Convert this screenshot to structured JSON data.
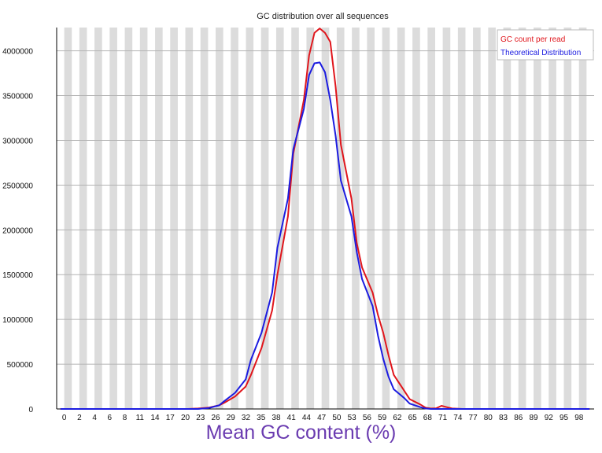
{
  "chart_data": {
    "type": "line",
    "title": "GC distribution over all sequences",
    "xlabel": "Mean GC content (%)",
    "ylabel": "",
    "x_tick_labels": [
      "0",
      "2",
      "4",
      "6",
      "8",
      "11",
      "14",
      "17",
      "20",
      "23",
      "26",
      "29",
      "32",
      "35",
      "38",
      "41",
      "44",
      "47",
      "50",
      "53",
      "56",
      "59",
      "62",
      "65",
      "68",
      "71",
      "74",
      "77",
      "80",
      "83",
      "86",
      "89",
      "92",
      "95",
      "98"
    ],
    "y_ticks": [
      0,
      500000,
      1000000,
      1500000,
      2000000,
      2500000,
      3000000,
      3500000,
      4000000
    ],
    "xlim": [
      0,
      100
    ],
    "ylim": [
      0,
      4260000
    ],
    "grid": true,
    "legend_position": "top-right",
    "series": [
      {
        "name": "GC count per read",
        "color": "#e0161c",
        "points": [
          [
            0,
            0
          ],
          [
            24,
            0
          ],
          [
            26,
            5000
          ],
          [
            28,
            15000
          ],
          [
            30,
            40000
          ],
          [
            31,
            70000
          ],
          [
            33,
            140000
          ],
          [
            35,
            250000
          ],
          [
            36,
            380000
          ],
          [
            38,
            680000
          ],
          [
            40,
            1100000
          ],
          [
            41,
            1500000
          ],
          [
            43,
            2150000
          ],
          [
            44,
            2850000
          ],
          [
            46,
            3450000
          ],
          [
            47,
            3950000
          ],
          [
            48,
            4200000
          ],
          [
            49,
            4250000
          ],
          [
            50,
            4200000
          ],
          [
            51,
            4100000
          ],
          [
            52,
            3600000
          ],
          [
            53,
            2950000
          ],
          [
            55,
            2350000
          ],
          [
            56,
            1850000
          ],
          [
            57,
            1580000
          ],
          [
            59,
            1300000
          ],
          [
            60,
            1050000
          ],
          [
            61,
            850000
          ],
          [
            62,
            600000
          ],
          [
            63,
            380000
          ],
          [
            65,
            200000
          ],
          [
            66,
            110000
          ],
          [
            68,
            50000
          ],
          [
            69,
            15000
          ],
          [
            70,
            5000
          ],
          [
            71,
            8000
          ],
          [
            72,
            35000
          ],
          [
            73,
            20000
          ],
          [
            74,
            5000
          ],
          [
            76,
            0
          ],
          [
            100,
            0
          ]
        ]
      },
      {
        "name": "Theoretical Distribution",
        "color": "#1c1ce0",
        "points": [
          [
            0,
            0
          ],
          [
            26,
            0
          ],
          [
            28,
            10000
          ],
          [
            30,
            40000
          ],
          [
            31,
            90000
          ],
          [
            33,
            180000
          ],
          [
            35,
            330000
          ],
          [
            36,
            550000
          ],
          [
            38,
            850000
          ],
          [
            40,
            1300000
          ],
          [
            41,
            1800000
          ],
          [
            43,
            2350000
          ],
          [
            44,
            2900000
          ],
          [
            46,
            3350000
          ],
          [
            47,
            3730000
          ],
          [
            48,
            3860000
          ],
          [
            49,
            3870000
          ],
          [
            50,
            3760000
          ],
          [
            51,
            3450000
          ],
          [
            52,
            3050000
          ],
          [
            53,
            2550000
          ],
          [
            55,
            2150000
          ],
          [
            56,
            1750000
          ],
          [
            57,
            1450000
          ],
          [
            59,
            1150000
          ],
          [
            60,
            820000
          ],
          [
            61,
            560000
          ],
          [
            62,
            360000
          ],
          [
            63,
            220000
          ],
          [
            65,
            120000
          ],
          [
            66,
            60000
          ],
          [
            68,
            20000
          ],
          [
            69,
            5000
          ],
          [
            70,
            0
          ],
          [
            100,
            0
          ]
        ]
      }
    ]
  }
}
